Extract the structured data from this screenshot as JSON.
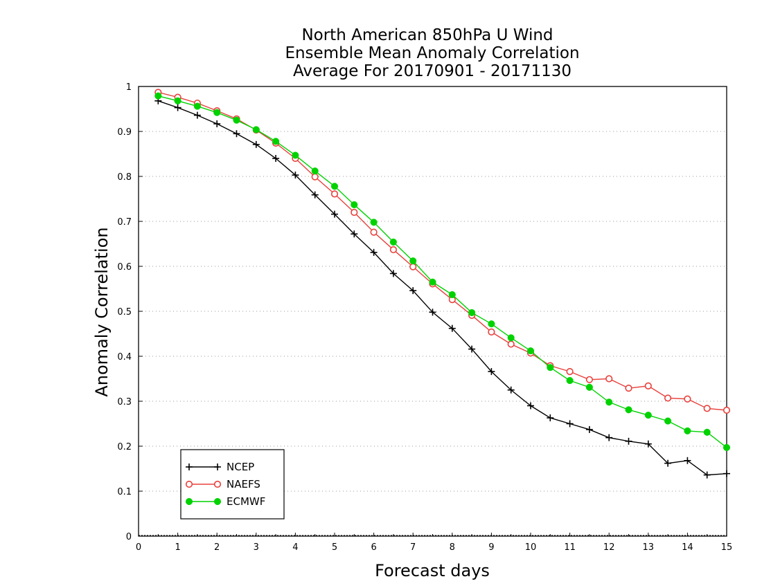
{
  "chart_data": {
    "type": "line",
    "title": [
      "North American 850hPa U Wind",
      "Ensemble Mean Anomaly Correlation",
      "Average For 20170901 - 20171130"
    ],
    "xlabel": "Forecast days",
    "ylabel": "Anomaly Correlation",
    "xlim": [
      0,
      15
    ],
    "ylim": [
      0,
      1
    ],
    "xticks": [
      "0",
      "1",
      "2",
      "3",
      "4",
      "5",
      "6",
      "7",
      "8",
      "9",
      "10",
      "11",
      "12",
      "13",
      "14",
      "15"
    ],
    "yticks": [
      "0",
      "0.1",
      "0.2",
      "0.3",
      "0.4",
      "0.5",
      "0.6",
      "0.7",
      "0.8",
      "0.9",
      "1"
    ],
    "grid": "horizontal dotted",
    "legend_position": "bottom-left",
    "x": [
      0.5,
      1,
      1.5,
      2,
      2.5,
      3,
      3.5,
      4,
      4.5,
      5,
      5.5,
      6,
      6.5,
      7,
      7.5,
      8,
      8.5,
      9,
      9.5,
      10,
      10.5,
      11,
      11.5,
      12,
      12.5,
      13,
      13.5,
      14,
      14.5,
      15
    ],
    "series": [
      {
        "name": "NCEP",
        "color": "#000000",
        "marker": "plus",
        "values": [
          0.968,
          0.953,
          0.936,
          0.917,
          0.895,
          0.871,
          0.84,
          0.803,
          0.759,
          0.716,
          0.672,
          0.631,
          0.584,
          0.546,
          0.498,
          0.462,
          0.416,
          0.366,
          0.325,
          0.29,
          0.263,
          0.25,
          0.237,
          0.219,
          0.211,
          0.205,
          0.162,
          0.168,
          0.136,
          0.139
        ]
      },
      {
        "name": "NAEFS",
        "color": "#e8403c",
        "marker": "open-circle",
        "values": [
          0.987,
          0.976,
          0.963,
          0.946,
          0.928,
          0.903,
          0.874,
          0.84,
          0.799,
          0.761,
          0.72,
          0.676,
          0.637,
          0.599,
          0.561,
          0.526,
          0.491,
          0.454,
          0.427,
          0.407,
          0.379,
          0.366,
          0.348,
          0.35,
          0.329,
          0.334,
          0.307,
          0.305,
          0.284,
          0.28
        ]
      },
      {
        "name": "ECMWF",
        "color": "#00d200",
        "marker": "filled-circle",
        "values": [
          0.979,
          0.968,
          0.956,
          0.942,
          0.925,
          0.904,
          0.878,
          0.847,
          0.812,
          0.778,
          0.737,
          0.698,
          0.654,
          0.612,
          0.565,
          0.537,
          0.497,
          0.472,
          0.441,
          0.412,
          0.375,
          0.346,
          0.331,
          0.298,
          0.281,
          0.269,
          0.256,
          0.234,
          0.231,
          0.197
        ]
      }
    ]
  }
}
